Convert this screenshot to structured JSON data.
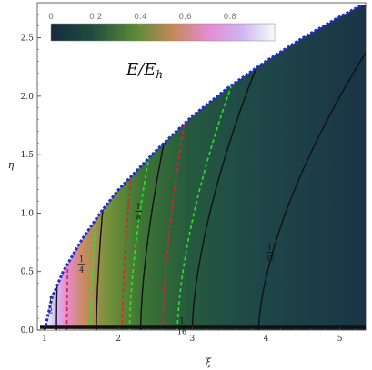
{
  "chart_data": {
    "type": "heatmap",
    "title": "",
    "xlabel": "ξ",
    "ylabel": "η",
    "xlim": [
      0.9,
      5.35
    ],
    "ylim": [
      0,
      2.8
    ],
    "x_ticks": [
      "1",
      "2",
      "3",
      "4",
      "5"
    ],
    "y_ticks": [
      "0.0",
      "0.5",
      "1.0",
      "1.5",
      "2.0",
      "2.5"
    ],
    "colorbar": {
      "label": "E/E_h",
      "label_main": "E/E",
      "label_sub": "h",
      "range": [
        0,
        1
      ],
      "ticks": [
        "0",
        "0.2",
        "0.4",
        "0.6",
        "0.8"
      ],
      "colors": [
        "#172a3c",
        "#1d4a3e",
        "#3f7b35",
        "#c8885a",
        "#e58bd0",
        "#d4b6f2",
        "#f4faf6"
      ]
    },
    "boundary": {
      "description_free": true,
      "x": [
        1.0,
        1.1,
        1.25,
        1.5,
        1.75,
        2.0,
        2.5,
        3.0,
        3.5,
        4.0,
        4.5,
        5.0,
        5.3
      ],
      "y": [
        0.0,
        0.28,
        0.5,
        0.77,
        1.0,
        1.2,
        1.53,
        1.83,
        2.08,
        2.3,
        2.5,
        2.68,
        2.78
      ],
      "color": "#1e2bd6"
    },
    "solid_contours": [
      {
        "label": "1/2",
        "x_base": 1.16
      },
      {
        "label": "1/4",
        "x_base": 1.7
      },
      {
        "label": "1/8",
        "x_base": 2.3
      },
      {
        "label": "1/16",
        "x_base": 3.0
      },
      {
        "label": "1/32",
        "x_base": 3.9
      }
    ],
    "green_dashed_x_base": [
      1.62,
      2.15,
      2.8
    ],
    "red_dashed_x_base": [
      1.3,
      2.05,
      2.6
    ],
    "green_dashed_color": "#29e529",
    "red_dashed_color": "#e0202a",
    "contour_labels": [
      "1",
      "2",
      "1",
      "4",
      "1",
      "8",
      "1",
      "16",
      "1",
      "32"
    ]
  }
}
